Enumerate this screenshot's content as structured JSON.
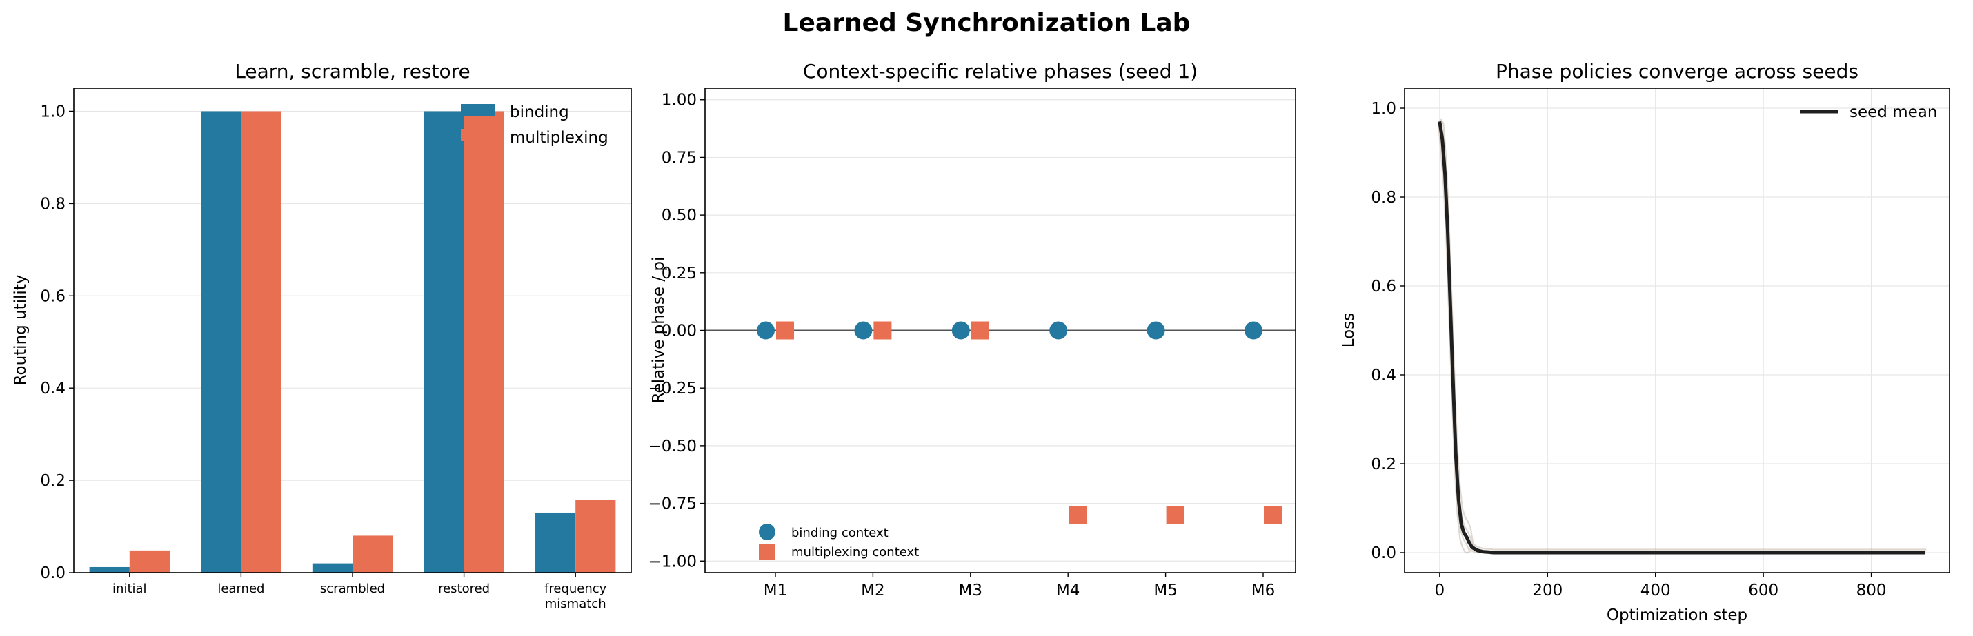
{
  "figure": {
    "title": "Learned Synchronization Lab"
  },
  "colors": {
    "binding": "#23799f",
    "multiplexing": "#e86f51",
    "mean": "#1f1f1f",
    "seed": "#b8a897"
  },
  "chart_data": [
    {
      "type": "bar",
      "title": "Learn, scramble, restore",
      "xlabel": "",
      "ylabel": "Routing utility",
      "ylim": [
        0,
        1.05
      ],
      "yticks": [
        "0.0",
        "0.2",
        "0.4",
        "0.6",
        "0.8",
        "1.0"
      ],
      "categories": [
        [
          "initial"
        ],
        [
          "learned"
        ],
        [
          "scrambled"
        ],
        [
          "restored"
        ],
        [
          "frequency",
          "mismatch"
        ]
      ],
      "series": [
        {
          "name": "binding",
          "values": [
            0.012,
            1.0,
            0.02,
            1.0,
            0.13
          ]
        },
        {
          "name": "multiplexing",
          "values": [
            0.048,
            1.0,
            0.08,
            1.0,
            0.157
          ]
        }
      ],
      "legend": "top-right",
      "grid": "y"
    },
    {
      "type": "scatter",
      "title": "Context-specific relative phases (seed 1)",
      "xlabel": "",
      "ylabel": "Relative phase / pi",
      "ylim": [
        -1.05,
        1.05
      ],
      "yticks": [
        "1.00",
        "0.75",
        "0.50",
        "0.25",
        "0.00",
        "−0.25",
        "−0.50",
        "−0.75",
        "−1.00"
      ],
      "categories": [
        "M1",
        "M2",
        "M3",
        "M4",
        "M5",
        "M6"
      ],
      "series": [
        {
          "name": "binding context",
          "values": [
            0,
            0,
            0,
            0,
            0,
            0
          ]
        },
        {
          "name": "multiplexing context",
          "values": [
            0,
            0,
            0,
            -0.8,
            -0.8,
            -0.8
          ]
        }
      ],
      "legend": "lower-left",
      "grid": "y"
    },
    {
      "type": "line",
      "title": "Phase policies converge across seeds",
      "xlabel": "Optimization step",
      "ylabel": "Loss",
      "xlim": [
        -65,
        945
      ],
      "ylim": [
        -0.045,
        1.045
      ],
      "xticks": [
        "0",
        "200",
        "400",
        "600",
        "800"
      ],
      "yticks": [
        "0.0",
        "0.2",
        "0.4",
        "0.6",
        "0.8",
        "1.0"
      ],
      "series": [
        {
          "name": "seed mean",
          "x": [
            0,
            5,
            10,
            15,
            20,
            25,
            30,
            35,
            40,
            45,
            50,
            55,
            60,
            70,
            80,
            90,
            100,
            150,
            200,
            300,
            400,
            500,
            600,
            700,
            800,
            900
          ],
          "y": [
            0.97,
            0.93,
            0.85,
            0.72,
            0.55,
            0.38,
            0.22,
            0.12,
            0.065,
            0.045,
            0.035,
            0.022,
            0.012,
            0.005,
            0.002,
            0.001,
            0.0,
            0.0,
            0.0,
            0.0,
            0.0,
            0.0,
            0.0,
            0.0,
            0.0,
            0.0
          ]
        }
      ],
      "legend": "top-right",
      "grid": "both"
    }
  ]
}
